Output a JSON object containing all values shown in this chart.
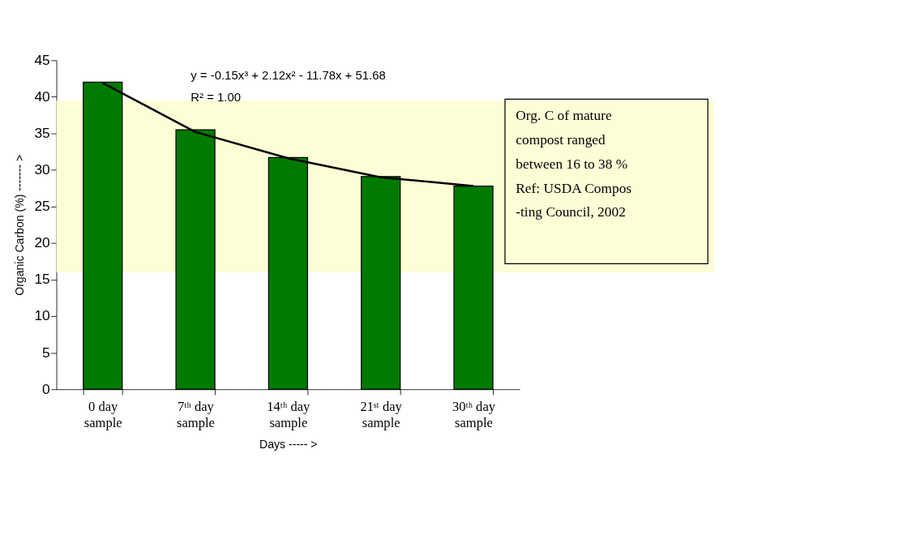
{
  "chart_data": {
    "type": "bar",
    "xlabel": "Days ----- >",
    "ylabel": "Organic Carbon (%) ------- >",
    "categories": [
      "0 day sample",
      "7ᵗʰ day sample",
      "14ᵗʰ day sample",
      "21ˢᵗ day sample",
      "30ᵗʰ day sample"
    ],
    "series": [
      {
        "color": "#007a00",
        "values": [
          42.0,
          35.5,
          31.7,
          29.1,
          27.8
        ]
      },
      {
        "type": "line",
        "color": "#000000",
        "values": [
          41.9,
          35.2,
          31.6,
          29.0,
          27.8
        ]
      }
    ],
    "ylim": [
      0,
      45
    ],
    "yticks": [
      0,
      5,
      10,
      15,
      20,
      25,
      30,
      35,
      40,
      45
    ],
    "bands": [
      {
        "axis": "y",
        "from": 16,
        "to": 39.5,
        "color": "#fdfdd6"
      }
    ],
    "annotations": [
      "y = -0.15x³ + 2.12x² - 11.78x + 51.68",
      "R² = 1.00",
      "Org. C of mature compost ranged between 16 to 38 %\nRef: USDA Compos\n-ting Council, 2002"
    ]
  }
}
